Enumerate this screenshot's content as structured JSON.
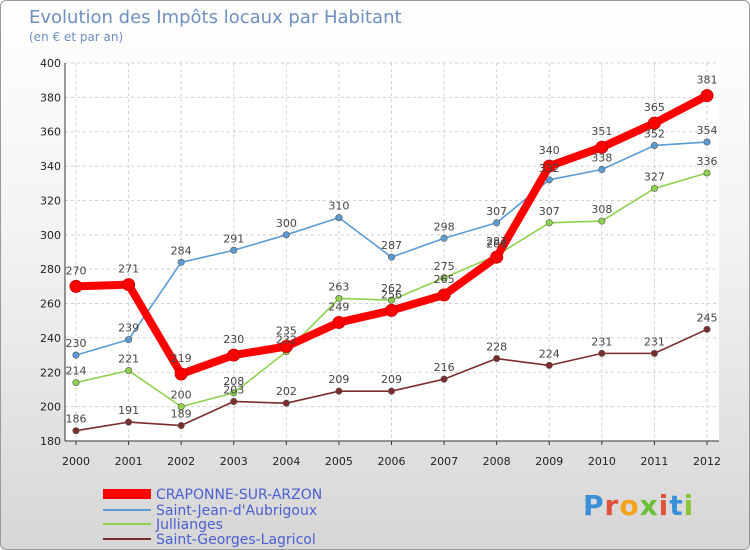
{
  "chart_data": {
    "type": "line",
    "title": "Evolution des Impôts locaux par Habitant",
    "subtitle": "(en € et par an)",
    "xlabel": "",
    "ylabel": "",
    "x": [
      "2000",
      "2001",
      "2002",
      "2003",
      "2004",
      "2005",
      "2006",
      "2007",
      "2008",
      "2009",
      "2010",
      "2011",
      "2012"
    ],
    "ylim": [
      180,
      400
    ],
    "yticks": [
      "180",
      "200",
      "220",
      "240",
      "260",
      "280",
      "300",
      "320",
      "340",
      "360",
      "380",
      "400"
    ],
    "grid": true,
    "legend_position": "bottom-left",
    "series": [
      {
        "name": "CRAPONNE-SUR-ARZON",
        "color": "#ff0000",
        "emphasis": true,
        "values": [
          270,
          271,
          219,
          230,
          235,
          249,
          256,
          265,
          287,
          340,
          351,
          365,
          381
        ],
        "labels": [
          "270",
          "271",
          "219",
          "230",
          "235",
          "249",
          "256",
          "265",
          "287",
          "340",
          "351",
          "365",
          "381"
        ]
      },
      {
        "name": "Saint-Jean-d'Aubrigoux",
        "color": "#5b9bd5",
        "values": [
          230,
          239,
          284,
          291,
          300,
          310,
          287,
          298,
          307,
          332,
          338,
          352,
          354
        ],
        "labels": [
          "230",
          "239",
          "284",
          "291",
          "300",
          "310",
          "287",
          "298",
          "307",
          "332",
          "338",
          "352",
          "354"
        ]
      },
      {
        "name": "Jullianges",
        "color": "#8fd14f",
        "values": [
          214,
          221,
          200,
          208,
          232,
          263,
          262,
          275,
          288,
          307,
          308,
          327,
          336
        ],
        "labels": [
          "214",
          "221",
          "200",
          "208",
          "232",
          "263",
          "262",
          "275",
          "288",
          "307",
          "308",
          "327",
          "336"
        ]
      },
      {
        "name": "Saint-Georges-Lagricol",
        "color": "#7b2c2c",
        "values": [
          186,
          191,
          189,
          203,
          202,
          209,
          209,
          216,
          228,
          224,
          231,
          231,
          245
        ],
        "labels": [
          "186",
          "191",
          "189",
          "203",
          "202",
          "209",
          "209",
          "216",
          "228",
          "224",
          "231",
          "231",
          "245"
        ]
      }
    ]
  },
  "logo": {
    "text": "Proxiti"
  }
}
